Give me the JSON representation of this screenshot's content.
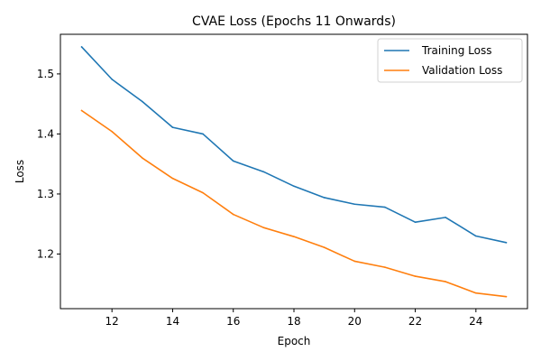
{
  "chart_data": {
    "type": "line",
    "title": "CVAE Loss (Epochs 11 Onwards)",
    "xlabel": "Epoch",
    "ylabel": "Loss",
    "x": [
      11,
      12,
      13,
      14,
      15,
      16,
      17,
      18,
      19,
      20,
      21,
      22,
      23,
      24,
      25
    ],
    "xlim": [
      10.3,
      25.7
    ],
    "ylim": [
      1.109,
      1.566
    ],
    "xticks": [
      12,
      14,
      16,
      18,
      20,
      22,
      24
    ],
    "yticks": [
      1.2,
      1.3,
      1.4,
      1.5
    ],
    "ytick_labels": [
      "1.2",
      "1.3",
      "1.4",
      "1.5"
    ],
    "grid": false,
    "legend_position": "top-right",
    "series": [
      {
        "name": "Training Loss",
        "color": "#1f77b4",
        "values": [
          1.545,
          1.491,
          1.454,
          1.411,
          1.4,
          1.355,
          1.337,
          1.313,
          1.294,
          1.283,
          1.278,
          1.253,
          1.261,
          1.23,
          1.219
        ]
      },
      {
        "name": "Validation Loss",
        "color": "#ff7f0e",
        "values": [
          1.439,
          1.404,
          1.36,
          1.326,
          1.302,
          1.266,
          1.244,
          1.229,
          1.211,
          1.188,
          1.178,
          1.163,
          1.154,
          1.135,
          1.129
        ]
      }
    ]
  }
}
